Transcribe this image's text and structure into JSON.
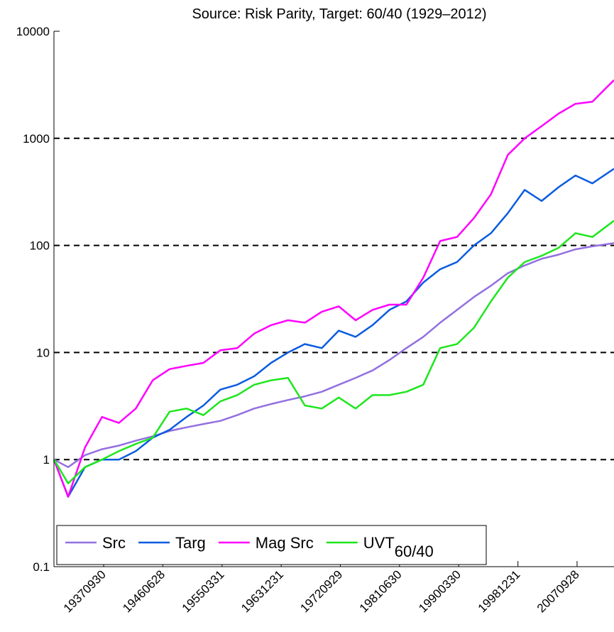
{
  "chart_data": {
    "type": "line",
    "title": "Source: Risk Parity, Target: 60/40 (1929–2012)",
    "log_y": true,
    "grid": true,
    "legend": "lower left",
    "x": [
      1930.4,
      1932.5,
      1935,
      1937.5,
      1940,
      1942.5,
      1945,
      1947.5,
      1950,
      1952.5,
      1955,
      1957.5,
      1960,
      1962.5,
      1965,
      1967.5,
      1970,
      1972.5,
      1975,
      1977.5,
      1980,
      1982.5,
      1985,
      1987.5,
      1990,
      1992.5,
      1995,
      1997.5,
      2000,
      2002.5,
      2005,
      2007.5,
      2010,
      2013.2
    ],
    "xlim": [
      1930.4,
      2013.2
    ],
    "xticks": [
      {
        "value": 1937.75,
        "label": "19370930"
      },
      {
        "value": 1946.49,
        "label": "19460628"
      },
      {
        "value": 1955.25,
        "label": "19550331"
      },
      {
        "value": 1964.0,
        "label": "19631231"
      },
      {
        "value": 1972.74,
        "label": "19720929"
      },
      {
        "value": 1981.49,
        "label": "19810630"
      },
      {
        "value": 1990.24,
        "label": "19900330"
      },
      {
        "value": 1999.0,
        "label": "19981231"
      },
      {
        "value": 2007.74,
        "label": "20070928"
      }
    ],
    "ylim": [
      0.1,
      10000
    ],
    "yticks": [
      0.1,
      1,
      10,
      100,
      1000,
      10000
    ],
    "series": [
      {
        "name": "Src",
        "color": "#9370e0",
        "values": [
          1,
          0.85,
          1.1,
          1.25,
          1.35,
          1.5,
          1.65,
          1.85,
          2.0,
          2.15,
          2.3,
          2.6,
          3.0,
          3.3,
          3.6,
          3.9,
          4.3,
          5.0,
          5.8,
          6.8,
          8.5,
          11,
          14,
          19,
          25,
          33,
          42,
          55,
          65,
          75,
          82,
          92,
          98,
          105
        ]
      },
      {
        "name": "Targ",
        "color": "#0a5ce0",
        "values": [
          1,
          0.45,
          0.85,
          1.0,
          1.0,
          1.2,
          1.6,
          1.9,
          2.5,
          3.2,
          4.5,
          5,
          6,
          8,
          10,
          12,
          11,
          16,
          14,
          18,
          25,
          30,
          45,
          60,
          70,
          100,
          130,
          200,
          330,
          260,
          350,
          450,
          380,
          520
        ]
      },
      {
        "name": "Mag Src",
        "color": "#ff00ff",
        "values": [
          1,
          0.45,
          1.3,
          2.5,
          2.2,
          3,
          5.5,
          7,
          7.5,
          8,
          10.5,
          11,
          15,
          18,
          20,
          19,
          24,
          27,
          20,
          25,
          28,
          28,
          50,
          110,
          120,
          180,
          300,
          700,
          1000,
          1300,
          1700,
          2100,
          2200,
          3500
        ]
      },
      {
        "name": "UVT",
        "name_subscript": "60/40",
        "color": "#1ee61e",
        "values": [
          1,
          0.6,
          0.85,
          1.0,
          1.2,
          1.4,
          1.6,
          2.8,
          3,
          2.6,
          3.5,
          4,
          5,
          5.5,
          5.8,
          3.2,
          3,
          3.8,
          3.0,
          4,
          4,
          4.3,
          5,
          11,
          12,
          17,
          30,
          50,
          70,
          80,
          95,
          130,
          120,
          170
        ]
      }
    ]
  }
}
